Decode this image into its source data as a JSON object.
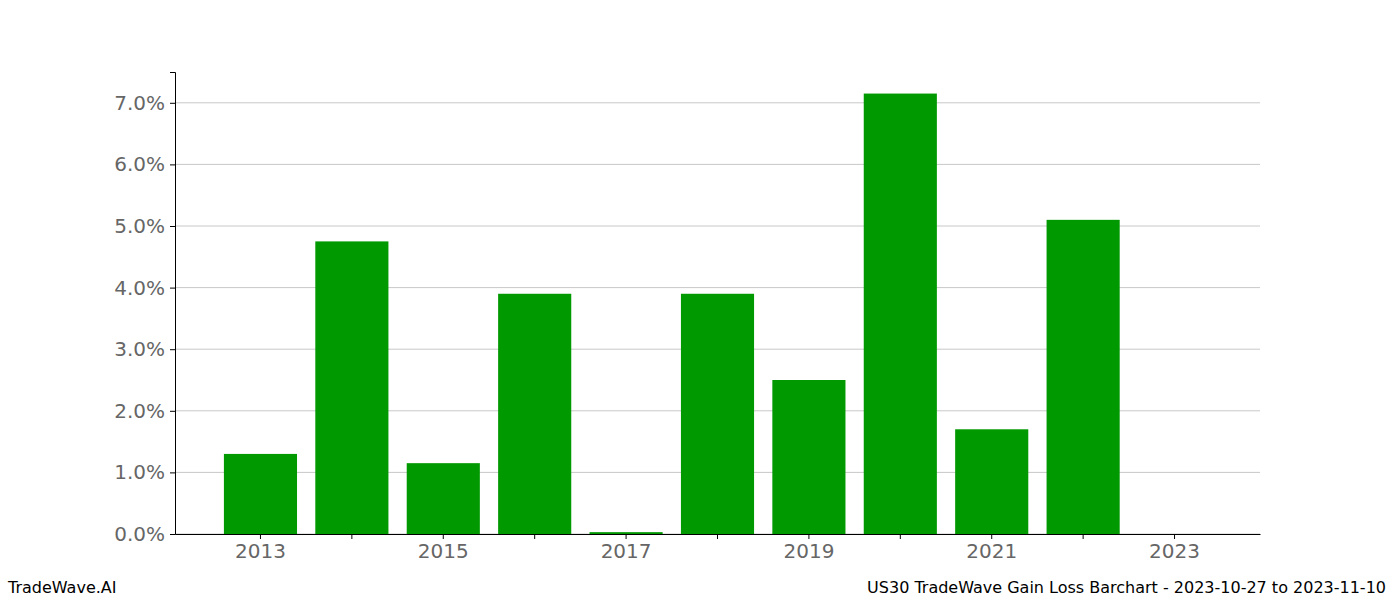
{
  "chart_data": {
    "type": "bar",
    "title": "US30 TradeWave Gain Loss Barchart - 2023-10-27 to 2023-11-10",
    "annotations": [
      "TradeWave.AI"
    ],
    "categories": [
      "2013",
      null,
      "2015",
      null,
      "2017",
      null,
      "2019",
      null,
      "2021",
      null,
      "2023"
    ],
    "values": [
      1.3,
      4.75,
      1.15,
      3.9,
      0.03,
      3.9,
      2.5,
      7.15,
      1.7,
      5.1,
      0
    ],
    "color": "#009900",
    "ylim": [
      0,
      7.5
    ],
    "yticks": [
      {
        "value": 0,
        "label": "0.0%"
      },
      {
        "value": 1,
        "label": "1.0%"
      },
      {
        "value": 2,
        "label": "2.0%"
      },
      {
        "value": 3,
        "label": "3.0%"
      },
      {
        "value": 4,
        "label": "4.0%"
      },
      {
        "value": 5,
        "label": "5.0%"
      },
      {
        "value": 6,
        "label": "6.0%"
      },
      {
        "value": 7,
        "label": "7.0%"
      }
    ],
    "grid": true
  }
}
